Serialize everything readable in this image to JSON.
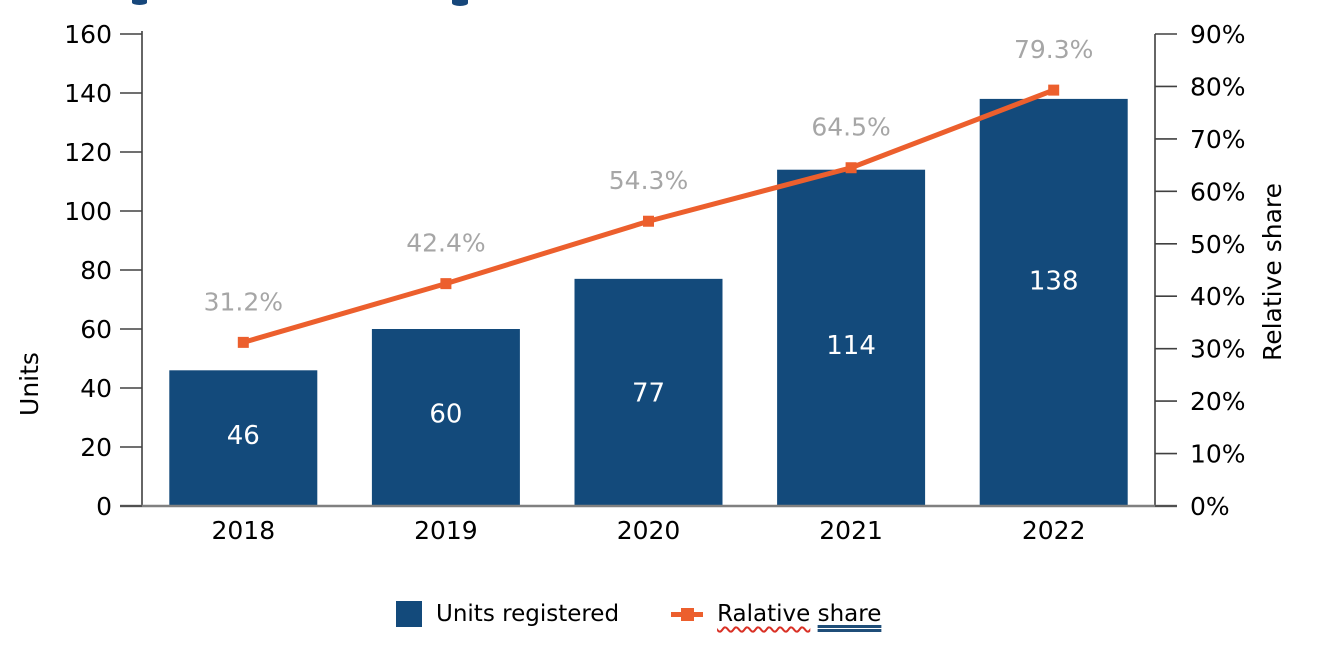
{
  "chart_data": {
    "type": "combo",
    "categories": [
      "2018",
      "2019",
      "2020",
      "2021",
      "2022"
    ],
    "series": [
      {
        "name": "Units registered",
        "type": "bar",
        "axis": "left",
        "values": [
          46,
          60,
          77,
          114,
          138
        ],
        "data_labels": [
          "46",
          "60",
          "77",
          "114",
          "138"
        ]
      },
      {
        "name": "Ralative share",
        "type": "line",
        "axis": "right",
        "values": [
          31.2,
          42.4,
          54.3,
          64.5,
          79.3
        ],
        "data_labels": [
          "31.2%",
          "42.4%",
          "54.3%",
          "64.5%",
          "79.3%"
        ]
      }
    ],
    "left_axis": {
      "title": "Units",
      "min": 0,
      "max": 160,
      "step": 20,
      "tick_labels": [
        "0",
        "20",
        "40",
        "60",
        "80",
        "100",
        "120",
        "140",
        "160"
      ]
    },
    "right_axis": {
      "title": "Relative share",
      "min": 0,
      "max": 90,
      "step": 10,
      "tick_labels": [
        "0%",
        "10%",
        "20%",
        "30%",
        "40%",
        "50%",
        "60%",
        "70%",
        "80%",
        "90%"
      ]
    },
    "grid": false,
    "legend_position": "bottom"
  },
  "colors": {
    "bar": "#134A7B",
    "line": "#EC5F2D",
    "point_label": "#A6A6A6",
    "bar_label": "#FFFFFF",
    "axis_text": "#000000",
    "tick_line": "#404040",
    "baseline": "#808080",
    "title_fragment": "#17477B",
    "misspell_underline": "#D93025",
    "grammar_underline": "#1F4E79"
  },
  "legend": {
    "units_label": "Units registered",
    "share_word1": "Ralative",
    "share_word2": "share"
  }
}
